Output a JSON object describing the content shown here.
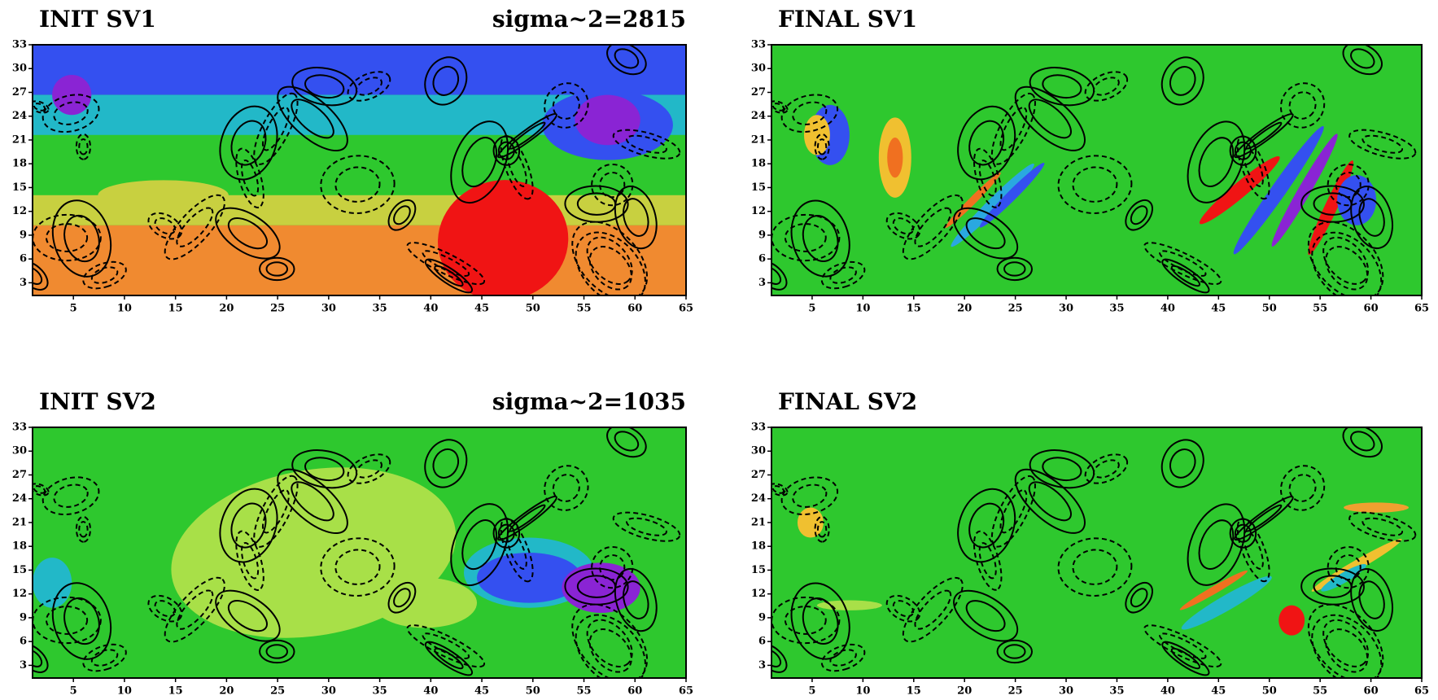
{
  "chart_data": [
    {
      "type": "contour",
      "title": "INIT  SV1",
      "subtitle": "sigma~2=2815",
      "xlim": [
        1,
        65
      ],
      "ylim": [
        1.4,
        33
      ],
      "xticks": [
        5,
        10,
        15,
        20,
        25,
        30,
        35,
        40,
        45,
        50,
        55,
        60,
        65
      ],
      "yticks": [
        3,
        6,
        9,
        12,
        15,
        18,
        21,
        24,
        27,
        30,
        33
      ]
    },
    {
      "type": "contour",
      "title": "FINAL  SV1",
      "xlim": [
        1,
        65
      ],
      "ylim": [
        1.4,
        33
      ],
      "xticks": [
        5,
        10,
        15,
        20,
        25,
        30,
        35,
        40,
        45,
        50,
        55,
        60,
        65
      ],
      "yticks": [
        3,
        6,
        9,
        12,
        15,
        18,
        21,
        24,
        27,
        30,
        33
      ]
    },
    {
      "type": "contour",
      "title": "INIT  SV2",
      "subtitle": "sigma~2=1035",
      "xlim": [
        1,
        65
      ],
      "ylim": [
        1.4,
        33
      ],
      "xticks": [
        5,
        10,
        15,
        20,
        25,
        30,
        35,
        40,
        45,
        50,
        55,
        60,
        65
      ],
      "yticks": [
        3,
        6,
        9,
        12,
        15,
        18,
        21,
        24,
        27,
        30,
        33
      ]
    },
    {
      "type": "contour",
      "title": "FINAL  SV2",
      "xlim": [
        1,
        65
      ],
      "ylim": [
        1.4,
        33
      ],
      "xticks": [
        5,
        10,
        15,
        20,
        25,
        30,
        35,
        40,
        45,
        50,
        55,
        60,
        65
      ],
      "yticks": [
        3,
        6,
        9,
        12,
        15,
        18,
        21,
        24,
        27,
        30,
        33
      ]
    }
  ]
}
